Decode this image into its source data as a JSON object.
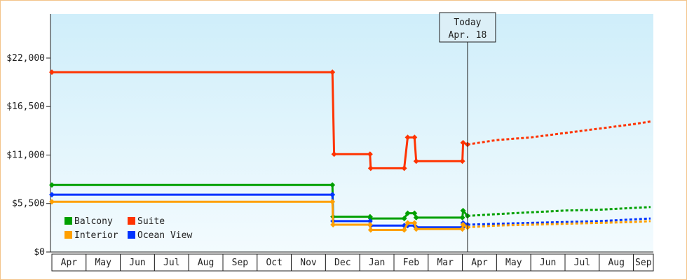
{
  "chart_data": {
    "type": "line",
    "title": "",
    "xlabel": "",
    "ylabel": "",
    "ylim": [
      0,
      27000
    ],
    "yticks": [
      "$0",
      "$5,500",
      "$11,000",
      "$16,500",
      "$22,000"
    ],
    "ytick_values": [
      0,
      5500,
      11000,
      16500,
      22000
    ],
    "months": [
      "Apr",
      "May",
      "Jun",
      "Jul",
      "Aug",
      "Sep",
      "Oct",
      "Nov",
      "Dec",
      "Jan",
      "Feb",
      "Mar",
      "Apr",
      "May",
      "Jun",
      "Jul",
      "Aug",
      "Sep"
    ],
    "today_label_line1": "Today",
    "today_label_line2": "Apr. 18",
    "today_x": 12.15,
    "grid": false,
    "legend_position": "bottom-left",
    "colors": {
      "Balcony": "#00a000",
      "Suite": "#ff3300",
      "Interior": "#ffa000",
      "Ocean View": "#0033ff",
      "background_top": "#cfeefa",
      "background_bottom": "#f3fbfe"
    },
    "series": [
      {
        "name": "Suite",
        "points": [
          [
            0,
            20400
          ],
          [
            8.2,
            20400
          ],
          [
            8.25,
            11100
          ],
          [
            9.3,
            11100
          ],
          [
            9.32,
            9500
          ],
          [
            10.3,
            9500
          ],
          [
            10.4,
            13000
          ],
          [
            10.6,
            13000
          ],
          [
            10.65,
            10300
          ],
          [
            12.0,
            10300
          ],
          [
            12.02,
            12400
          ],
          [
            12.15,
            12200
          ]
        ],
        "projection": [
          [
            12.15,
            12200
          ],
          [
            13.0,
            12700
          ],
          [
            14.0,
            13000
          ],
          [
            15.0,
            13500
          ],
          [
            16.0,
            14000
          ],
          [
            17.0,
            14500
          ],
          [
            17.5,
            14800
          ]
        ]
      },
      {
        "name": "Balcony",
        "points": [
          [
            0,
            7600
          ],
          [
            8.2,
            7600
          ],
          [
            8.22,
            4000
          ],
          [
            9.3,
            4000
          ],
          [
            9.32,
            3800
          ],
          [
            10.3,
            3800
          ],
          [
            10.4,
            4400
          ],
          [
            10.6,
            4400
          ],
          [
            10.65,
            3900
          ],
          [
            12.0,
            3900
          ],
          [
            12.02,
            4700
          ],
          [
            12.15,
            4100
          ]
        ],
        "projection": [
          [
            12.15,
            4100
          ],
          [
            13.0,
            4300
          ],
          [
            14.0,
            4500
          ],
          [
            15.0,
            4700
          ],
          [
            16.0,
            4800
          ],
          [
            17.0,
            5000
          ],
          [
            17.5,
            5100
          ]
        ]
      },
      {
        "name": "Ocean View",
        "points": [
          [
            0,
            6500
          ],
          [
            8.2,
            6500
          ],
          [
            8.22,
            3500
          ],
          [
            9.3,
            3500
          ],
          [
            9.32,
            3000
          ],
          [
            10.3,
            3000
          ],
          [
            10.4,
            3000
          ],
          [
            10.6,
            3000
          ],
          [
            10.65,
            2800
          ],
          [
            12.0,
            2800
          ],
          [
            12.02,
            3300
          ],
          [
            12.15,
            3100
          ]
        ],
        "projection": [
          [
            12.15,
            3100
          ],
          [
            13.0,
            3200
          ],
          [
            14.0,
            3300
          ],
          [
            15.0,
            3400
          ],
          [
            16.0,
            3500
          ],
          [
            17.0,
            3700
          ],
          [
            17.5,
            3800
          ]
        ]
      },
      {
        "name": "Interior",
        "points": [
          [
            0,
            5700
          ],
          [
            8.2,
            5700
          ],
          [
            8.22,
            3100
          ],
          [
            9.3,
            3100
          ],
          [
            9.32,
            2500
          ],
          [
            10.3,
            2500
          ],
          [
            10.4,
            3300
          ],
          [
            10.6,
            3300
          ],
          [
            10.65,
            2600
          ],
          [
            12.0,
            2600
          ],
          [
            12.02,
            3100
          ],
          [
            12.15,
            2800
          ]
        ],
        "projection": [
          [
            12.15,
            2800
          ],
          [
            13.0,
            3000
          ],
          [
            14.0,
            3100
          ],
          [
            15.0,
            3200
          ],
          [
            16.0,
            3300
          ],
          [
            17.0,
            3400
          ],
          [
            17.5,
            3500
          ]
        ]
      }
    ],
    "legend": [
      {
        "name": "Balcony",
        "color": "#00a000"
      },
      {
        "name": "Suite",
        "color": "#ff3300"
      },
      {
        "name": "Interior",
        "color": "#ffa000"
      },
      {
        "name": "Ocean View",
        "color": "#0033ff"
      }
    ]
  }
}
